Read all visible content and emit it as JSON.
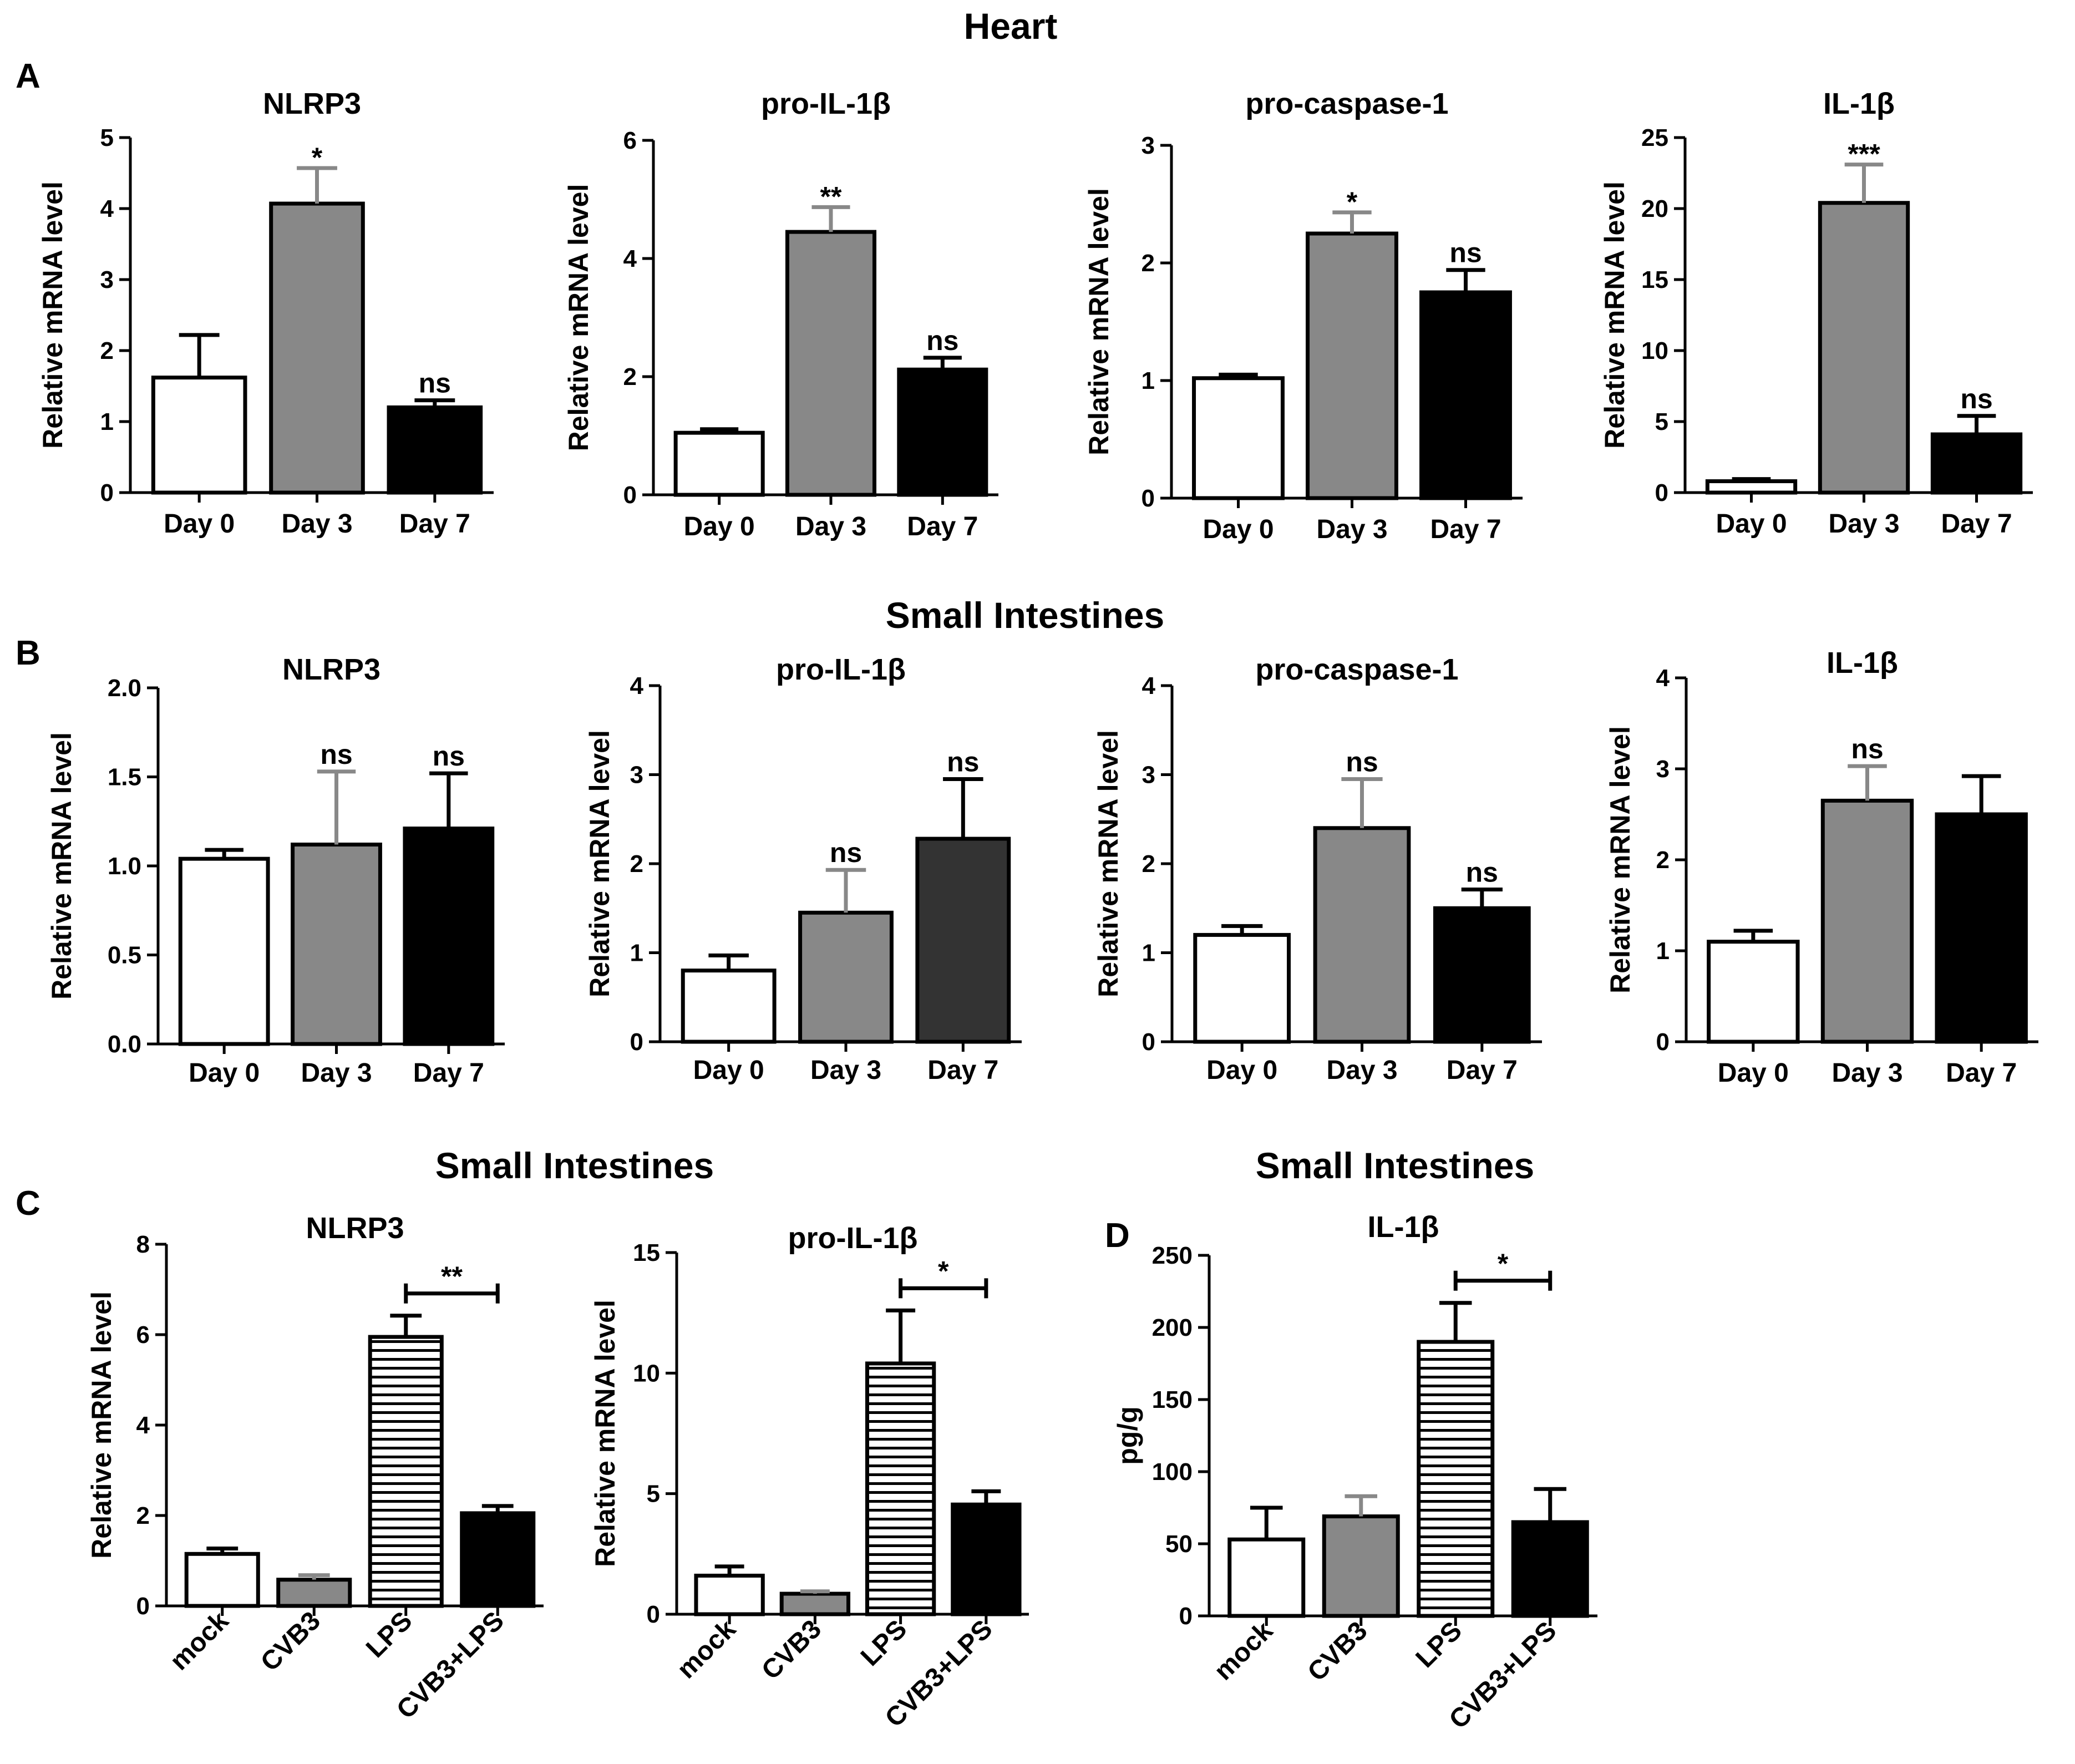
{
  "sections": {
    "heart": "Heart",
    "small_intestines_b": "Small Intestines",
    "small_intestines_c": "Small Intestines",
    "small_intestines_d": "Small Intestines"
  },
  "panels": {
    "a": "A",
    "b": "B",
    "c": "C",
    "d": "D"
  },
  "colors": {
    "day0": "#ffffff",
    "day3": "#888888",
    "day7": "#000000",
    "day7_dark": "#333333",
    "lps_stripe": "#000000"
  },
  "chart_data": [
    {
      "type": "bar",
      "panel": "A",
      "section": "Heart",
      "title": "NLRP3",
      "ylabel": "Relative mRNA level",
      "categories": [
        "Day 0",
        "Day 3",
        "Day 7"
      ],
      "values": [
        1.62,
        4.07,
        1.2
      ],
      "errors": [
        0.6,
        0.5,
        0.1
      ],
      "ylim": [
        0,
        5
      ],
      "yticks": [
        0,
        1,
        2,
        3,
        4,
        5
      ],
      "tick_labels": [
        "0",
        "1",
        "2",
        "3",
        "4",
        "5"
      ],
      "annotations": [
        "",
        "*",
        "ns"
      ],
      "fills": [
        "day0",
        "day3",
        "day7"
      ],
      "comparison": null
    },
    {
      "type": "bar",
      "panel": "A",
      "section": "Heart",
      "title": "pro-IL-1β",
      "ylabel": "Relative mRNA level",
      "categories": [
        "Day 0",
        "Day 3",
        "Day 7"
      ],
      "values": [
        1.05,
        4.45,
        2.12
      ],
      "errors": [
        0.06,
        0.42,
        0.2
      ],
      "ylim": [
        0,
        6
      ],
      "yticks": [
        0,
        2,
        4,
        6
      ],
      "tick_labels": [
        "0",
        "2",
        "4",
        "6"
      ],
      "annotations": [
        "",
        "**",
        "ns"
      ],
      "fills": [
        "day0",
        "day3",
        "day7"
      ],
      "comparison": null
    },
    {
      "type": "bar",
      "panel": "A",
      "section": "Heart",
      "title": "pro-caspase-1",
      "ylabel": "Relative mRNA level",
      "categories": [
        "Day 0",
        "Day 3",
        "Day 7"
      ],
      "values": [
        1.02,
        2.25,
        1.75
      ],
      "errors": [
        0.03,
        0.18,
        0.19
      ],
      "ylim": [
        0,
        3
      ],
      "yticks": [
        0,
        1,
        2,
        3
      ],
      "tick_labels": [
        "0",
        "1",
        "2",
        "3"
      ],
      "annotations": [
        "",
        "*",
        "ns"
      ],
      "fills": [
        "day0",
        "day3",
        "day7"
      ],
      "comparison": null
    },
    {
      "type": "bar",
      "panel": "A",
      "section": "Heart",
      "title": "IL-1β",
      "ylabel": "Relative mRNA level",
      "categories": [
        "Day 0",
        "Day 3",
        "Day 7"
      ],
      "values": [
        0.8,
        20.4,
        4.1
      ],
      "errors": [
        0.15,
        2.7,
        1.3
      ],
      "ylim": [
        0,
        25
      ],
      "yticks": [
        0,
        5,
        10,
        15,
        20,
        25
      ],
      "tick_labels": [
        "0",
        "5",
        "10",
        "15",
        "20",
        "25"
      ],
      "annotations": [
        "",
        "***",
        "ns"
      ],
      "fills": [
        "day0",
        "day3",
        "day7"
      ],
      "comparison": null
    },
    {
      "type": "bar",
      "panel": "B",
      "section": "Small Intestines",
      "title": "NLRP3",
      "ylabel": "Relative mRNA level",
      "categories": [
        "Day 0",
        "Day 3",
        "Day 7"
      ],
      "values": [
        1.04,
        1.12,
        1.21
      ],
      "errors": [
        0.05,
        0.41,
        0.31
      ],
      "ylim": [
        0,
        2
      ],
      "yticks": [
        0,
        0.5,
        1,
        1.5,
        2
      ],
      "tick_labels": [
        "0.0",
        "0.5",
        "1.0",
        "1.5",
        "2.0"
      ],
      "annotations": [
        "",
        "ns",
        "ns"
      ],
      "fills": [
        "day0",
        "day3",
        "day7"
      ],
      "comparison": null
    },
    {
      "type": "bar",
      "panel": "B",
      "section": "Small Intestines",
      "title": "pro-IL-1β",
      "ylabel": "Relative mRNA level",
      "categories": [
        "Day 0",
        "Day 3",
        "Day 7"
      ],
      "values": [
        0.8,
        1.45,
        2.28
      ],
      "errors": [
        0.17,
        0.48,
        0.67
      ],
      "ylim": [
        0,
        4
      ],
      "yticks": [
        0,
        1,
        2,
        3,
        4
      ],
      "tick_labels": [
        "0",
        "1",
        "2",
        "3",
        "4"
      ],
      "annotations": [
        "",
        "ns",
        "ns"
      ],
      "fills": [
        "day0",
        "day3",
        "day7_dark"
      ],
      "comparison": null
    },
    {
      "type": "bar",
      "panel": "B",
      "section": "Small Intestines",
      "title": "pro-caspase-1",
      "ylabel": "Relative mRNA level",
      "categories": [
        "Day 0",
        "Day 3",
        "Day 7"
      ],
      "values": [
        1.2,
        2.4,
        1.5
      ],
      "errors": [
        0.1,
        0.55,
        0.21
      ],
      "ylim": [
        0,
        4
      ],
      "yticks": [
        0,
        1,
        2,
        3,
        4
      ],
      "tick_labels": [
        "0",
        "1",
        "2",
        "3",
        "4"
      ],
      "annotations": [
        "",
        "ns",
        "ns"
      ],
      "fills": [
        "day0",
        "day3",
        "day7"
      ],
      "comparison": null
    },
    {
      "type": "bar",
      "panel": "B",
      "section": "Small Intestines",
      "title": "IL-1β",
      "ylabel": "Relative mRNA level",
      "categories": [
        "Day 0",
        "Day 3",
        "Day 7"
      ],
      "values": [
        1.1,
        2.65,
        2.5
      ],
      "errors": [
        0.12,
        0.38,
        0.42
      ],
      "ylim": [
        0,
        4
      ],
      "yticks": [
        0,
        1,
        2,
        3,
        4
      ],
      "tick_labels": [
        "0",
        "1",
        "2",
        "3",
        "4"
      ],
      "annotations": [
        "",
        "ns",
        ""
      ],
      "fills": [
        "day0",
        "day3",
        "day7"
      ],
      "comparison": null
    },
    {
      "type": "bar",
      "panel": "C",
      "section": "Small Intestines",
      "title": "NLRP3",
      "ylabel": "Relative mRNA level",
      "categories": [
        "mock",
        "CVB3",
        "LPS",
        "CVB3+LPS"
      ],
      "values": [
        1.15,
        0.58,
        5.95,
        2.05
      ],
      "errors": [
        0.12,
        0.1,
        0.47,
        0.16
      ],
      "ylim": [
        0,
        8
      ],
      "yticks": [
        0,
        2,
        4,
        6,
        8
      ],
      "tick_labels": [
        "0",
        "2",
        "4",
        "6",
        "8"
      ],
      "annotations": [
        "",
        "",
        "",
        ""
      ],
      "fills": [
        "day0",
        "day3",
        "stripe",
        "day7"
      ],
      "comparison": {
        "from": 2,
        "to": 3,
        "label": "**"
      }
    },
    {
      "type": "bar",
      "panel": "C",
      "section": "Small Intestines",
      "title": "pro-IL-1β",
      "ylabel": "Relative mRNA level",
      "categories": [
        "mock",
        "CVB3",
        "LPS",
        "CVB3+LPS"
      ],
      "values": [
        1.6,
        0.85,
        10.4,
        4.55
      ],
      "errors": [
        0.38,
        0.1,
        2.2,
        0.55
      ],
      "ylim": [
        0,
        15
      ],
      "yticks": [
        0,
        5,
        10,
        15
      ],
      "tick_labels": [
        "0",
        "5",
        "10",
        "15"
      ],
      "annotations": [
        "",
        "",
        "",
        ""
      ],
      "fills": [
        "day0",
        "day3",
        "stripe",
        "day7"
      ],
      "comparison": {
        "from": 2,
        "to": 3,
        "label": "*"
      }
    },
    {
      "type": "bar",
      "panel": "D",
      "section": "Small Intestines",
      "title": "IL-1β",
      "ylabel": "pg/g",
      "categories": [
        "mock",
        "CVB3",
        "LPS",
        "CVB3+LPS"
      ],
      "values": [
        53,
        69,
        190,
        65
      ],
      "errors": [
        22,
        14,
        27,
        23
      ],
      "ylim": [
        0,
        250
      ],
      "yticks": [
        0,
        50,
        100,
        150,
        200,
        250
      ],
      "tick_labels": [
        "0",
        "50",
        "100",
        "150",
        "200",
        "250"
      ],
      "annotations": [
        "",
        "",
        "",
        ""
      ],
      "fills": [
        "day0",
        "day3",
        "stripe",
        "day7"
      ],
      "comparison": {
        "from": 2,
        "to": 3,
        "label": "*"
      }
    }
  ]
}
